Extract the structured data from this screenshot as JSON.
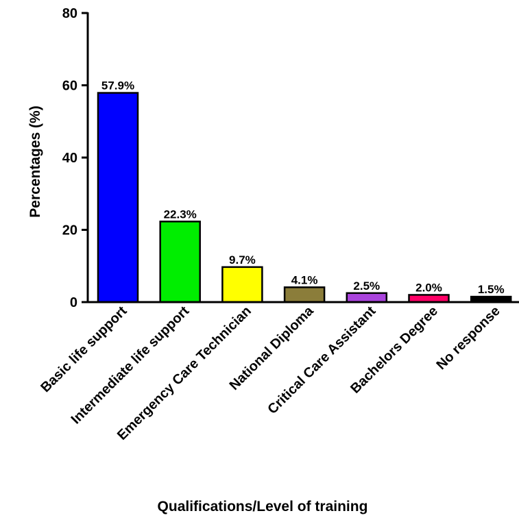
{
  "chart_data": {
    "type": "bar",
    "title": "",
    "xlabel": "Qualifications/Level of training",
    "ylabel": "Percentages (%)",
    "ylim": [
      0,
      80
    ],
    "yticks": [
      "0",
      "20",
      "40",
      "60",
      "80"
    ],
    "grid": false,
    "legend": "none",
    "categories": [
      "Basic life support",
      "Intermediate life support",
      "Emergency Care Technician",
      "National Diploma",
      "Critical Care Assistant",
      "Bachelors Degree",
      "No response"
    ],
    "values": [
      57.9,
      22.3,
      9.7,
      4.1,
      2.5,
      2.0,
      1.5
    ],
    "data_labels": [
      "57.9%",
      "22.3%",
      "9.7%",
      "4.1%",
      "2.5%",
      "2.0%",
      "1.5%"
    ],
    "colors": [
      "#0000ff",
      "#00ee00",
      "#ffff00",
      "#8b7d3a",
      "#aa44dd",
      "#ff0066",
      "#000000"
    ]
  }
}
